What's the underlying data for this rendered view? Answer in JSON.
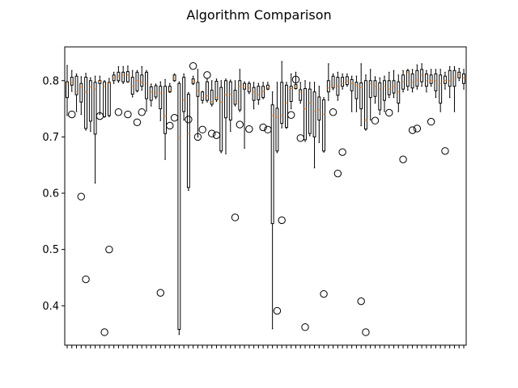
{
  "chart_data": {
    "type": "box",
    "title": "Algorithm Comparison",
    "xlabel": "",
    "ylabel": "",
    "ylim": [
      0.33,
      0.86
    ],
    "yticks": [
      0.4,
      0.5,
      0.6,
      0.7,
      0.8
    ],
    "ytick_labels": [
      "0.4",
      "0.5",
      "0.6",
      "0.7",
      "0.8"
    ],
    "grid": false,
    "legend": "none",
    "n_boxes": 86,
    "box_color": "#000000",
    "median_color": "#ff7f0e",
    "boxes": [
      {
        "whislo": 0.738,
        "q1": 0.77,
        "med": 0.794,
        "q3": 0.798,
        "whishi": 0.827,
        "fliers": []
      },
      {
        "whislo": 0.781,
        "q1": 0.792,
        "med": 0.797,
        "q3": 0.806,
        "whishi": 0.818,
        "fliers": [
          0.74
        ]
      },
      {
        "whislo": 0.745,
        "q1": 0.775,
        "med": 0.78,
        "q3": 0.808,
        "whishi": 0.812,
        "fliers": []
      },
      {
        "whislo": 0.74,
        "q1": 0.762,
        "med": 0.789,
        "q3": 0.795,
        "whishi": 0.807,
        "fliers": [
          0.594
        ]
      },
      {
        "whislo": 0.712,
        "q1": 0.715,
        "med": 0.78,
        "q3": 0.806,
        "whishi": 0.813,
        "fliers": [
          0.447
        ]
      },
      {
        "whislo": 0.71,
        "q1": 0.728,
        "med": 0.789,
        "q3": 0.8,
        "whishi": 0.805,
        "fliers": []
      },
      {
        "whislo": 0.618,
        "q1": 0.705,
        "med": 0.785,
        "q3": 0.797,
        "whishi": 0.808,
        "fliers": []
      },
      {
        "whislo": 0.74,
        "q1": 0.795,
        "med": 0.799,
        "q3": 0.8,
        "whishi": 0.808,
        "fliers": [
          0.737
        ]
      },
      {
        "whislo": 0.735,
        "q1": 0.736,
        "med": 0.79,
        "q3": 0.798,
        "whishi": 0.8,
        "fliers": [
          0.353
        ]
      },
      {
        "whislo": 0.736,
        "q1": 0.738,
        "med": 0.796,
        "q3": 0.797,
        "whishi": 0.804,
        "fliers": [
          0.5
        ]
      },
      {
        "whislo": 0.795,
        "q1": 0.8,
        "med": 0.805,
        "q3": 0.81,
        "whishi": 0.815,
        "fliers": []
      },
      {
        "whislo": 0.797,
        "q1": 0.8,
        "med": 0.808,
        "q3": 0.815,
        "whishi": 0.825,
        "fliers": [
          0.744
        ]
      },
      {
        "whislo": 0.795,
        "q1": 0.798,
        "med": 0.81,
        "q3": 0.815,
        "whishi": 0.825,
        "fliers": []
      },
      {
        "whislo": 0.797,
        "q1": 0.798,
        "med": 0.81,
        "q3": 0.816,
        "whishi": 0.826,
        "fliers": [
          0.74
        ]
      },
      {
        "whislo": 0.771,
        "q1": 0.776,
        "med": 0.79,
        "q3": 0.806,
        "whishi": 0.818,
        "fliers": []
      },
      {
        "whislo": 0.78,
        "q1": 0.782,
        "med": 0.8,
        "q3": 0.815,
        "whishi": 0.818,
        "fliers": [
          0.726
        ]
      },
      {
        "whislo": 0.783,
        "q1": 0.79,
        "med": 0.797,
        "q3": 0.81,
        "whishi": 0.825,
        "fliers": [
          0.744
        ]
      },
      {
        "whislo": 0.746,
        "q1": 0.768,
        "med": 0.795,
        "q3": 0.815,
        "whishi": 0.818,
        "fliers": []
      },
      {
        "whislo": 0.755,
        "q1": 0.765,
        "med": 0.78,
        "q3": 0.789,
        "whishi": 0.794,
        "fliers": []
      },
      {
        "whislo": 0.768,
        "q1": 0.771,
        "med": 0.778,
        "q3": 0.791,
        "whishi": 0.794,
        "fliers": []
      },
      {
        "whislo": 0.729,
        "q1": 0.75,
        "med": 0.778,
        "q3": 0.79,
        "whishi": 0.798,
        "fliers": [
          0.423
        ]
      },
      {
        "whislo": 0.66,
        "q1": 0.706,
        "med": 0.737,
        "q3": 0.79,
        "whishi": 0.802,
        "fliers": []
      },
      {
        "whislo": 0.779,
        "q1": 0.78,
        "med": 0.782,
        "q3": 0.79,
        "whishi": 0.795,
        "fliers": [
          0.72
        ]
      },
      {
        "whislo": 0.799,
        "q1": 0.8,
        "med": 0.805,
        "q3": 0.81,
        "whishi": 0.812,
        "fliers": [
          0.734
        ]
      },
      {
        "whislo": 0.349,
        "q1": 0.358,
        "med": 0.698,
        "q3": 0.795,
        "whishi": 0.798,
        "fliers": []
      },
      {
        "whislo": 0.73,
        "q1": 0.745,
        "med": 0.766,
        "q3": 0.806,
        "whishi": 0.812,
        "fliers": []
      },
      {
        "whislo": 0.605,
        "q1": 0.61,
        "med": 0.706,
        "q3": 0.776,
        "whishi": 0.779,
        "fliers": [
          0.731
        ]
      },
      {
        "whislo": 0.793,
        "q1": 0.795,
        "med": 0.799,
        "q3": 0.803,
        "whishi": 0.808,
        "fliers": [
          0.826
        ]
      },
      {
        "whislo": 0.7,
        "q1": 0.772,
        "med": 0.782,
        "q3": 0.797,
        "whishi": 0.82,
        "fliers": [
          0.7
        ]
      },
      {
        "whislo": 0.76,
        "q1": 0.765,
        "med": 0.77,
        "q3": 0.78,
        "whishi": 0.781,
        "fliers": [
          0.713
        ]
      },
      {
        "whislo": 0.762,
        "q1": 0.765,
        "med": 0.773,
        "q3": 0.798,
        "whishi": 0.803,
        "fliers": [
          0.81
        ]
      },
      {
        "whislo": 0.755,
        "q1": 0.758,
        "med": 0.763,
        "q3": 0.783,
        "whishi": 0.8,
        "fliers": [
          0.706
        ]
      },
      {
        "whislo": 0.763,
        "q1": 0.766,
        "med": 0.77,
        "q3": 0.799,
        "whishi": 0.803,
        "fliers": [
          0.703
        ]
      },
      {
        "whislo": 0.672,
        "q1": 0.675,
        "med": 0.762,
        "q3": 0.788,
        "whishi": 0.8,
        "fliers": []
      },
      {
        "whislo": 0.67,
        "q1": 0.734,
        "med": 0.775,
        "q3": 0.8,
        "whishi": 0.803,
        "fliers": []
      },
      {
        "whislo": 0.71,
        "q1": 0.73,
        "med": 0.776,
        "q3": 0.798,
        "whishi": 0.801,
        "fliers": []
      },
      {
        "whislo": 0.755,
        "q1": 0.758,
        "med": 0.763,
        "q3": 0.783,
        "whishi": 0.8,
        "fliers": [
          0.557
        ]
      },
      {
        "whislo": 0.745,
        "q1": 0.748,
        "med": 0.79,
        "q3": 0.8,
        "whishi": 0.82,
        "fliers": [
          0.722
        ]
      },
      {
        "whislo": 0.68,
        "q1": 0.785,
        "med": 0.79,
        "q3": 0.795,
        "whishi": 0.798,
        "fliers": []
      },
      {
        "whislo": 0.777,
        "q1": 0.78,
        "med": 0.787,
        "q3": 0.795,
        "whishi": 0.798,
        "fliers": [
          0.714
        ]
      },
      {
        "whislo": 0.75,
        "q1": 0.765,
        "med": 0.78,
        "q3": 0.788,
        "whishi": 0.797,
        "fliers": []
      },
      {
        "whislo": 0.758,
        "q1": 0.766,
        "med": 0.775,
        "q3": 0.79,
        "whishi": 0.795,
        "fliers": []
      },
      {
        "whislo": 0.768,
        "q1": 0.77,
        "med": 0.781,
        "q3": 0.79,
        "whishi": 0.797,
        "fliers": [
          0.717
        ]
      },
      {
        "whislo": 0.784,
        "q1": 0.785,
        "med": 0.787,
        "q3": 0.792,
        "whishi": 0.797,
        "fliers": [
          0.713
        ]
      },
      {
        "whislo": 0.359,
        "q1": 0.546,
        "med": 0.738,
        "q3": 0.757,
        "whishi": 0.78,
        "fliers": []
      },
      {
        "whislo": 0.672,
        "q1": 0.675,
        "med": 0.735,
        "q3": 0.751,
        "whishi": 0.797,
        "fliers": [
          0.391
        ]
      },
      {
        "whislo": 0.716,
        "q1": 0.724,
        "med": 0.738,
        "q3": 0.797,
        "whishi": 0.834,
        "fliers": [
          0.552
        ]
      },
      {
        "whislo": 0.715,
        "q1": 0.717,
        "med": 0.76,
        "q3": 0.792,
        "whishi": 0.797,
        "fliers": []
      },
      {
        "whislo": 0.75,
        "q1": 0.763,
        "med": 0.786,
        "q3": 0.79,
        "whishi": 0.812,
        "fliers": [
          0.739
        ]
      },
      {
        "whislo": 0.785,
        "q1": 0.786,
        "med": 0.789,
        "q3": 0.793,
        "whishi": 0.815,
        "fliers": [
          0.802
        ]
      },
      {
        "whislo": 0.76,
        "q1": 0.765,
        "med": 0.78,
        "q3": 0.784,
        "whishi": 0.797,
        "fliers": [
          0.698
        ]
      },
      {
        "whislo": 0.692,
        "q1": 0.695,
        "med": 0.75,
        "q3": 0.786,
        "whishi": 0.8,
        "fliers": [
          0.362
        ]
      },
      {
        "whislo": 0.702,
        "q1": 0.706,
        "med": 0.76,
        "q3": 0.785,
        "whishi": 0.797,
        "fliers": []
      },
      {
        "whislo": 0.645,
        "q1": 0.7,
        "med": 0.745,
        "q3": 0.78,
        "whishi": 0.797,
        "fliers": []
      },
      {
        "whislo": 0.69,
        "q1": 0.73,
        "med": 0.748,
        "q3": 0.771,
        "whishi": 0.79,
        "fliers": []
      },
      {
        "whislo": 0.673,
        "q1": 0.675,
        "med": 0.74,
        "q3": 0.766,
        "whishi": 0.77,
        "fliers": [
          0.421
        ]
      },
      {
        "whislo": 0.765,
        "q1": 0.78,
        "med": 0.787,
        "q3": 0.8,
        "whishi": 0.83,
        "fliers": []
      },
      {
        "whislo": 0.784,
        "q1": 0.787,
        "med": 0.791,
        "q3": 0.808,
        "whishi": 0.812,
        "fliers": [
          0.744
        ]
      },
      {
        "whislo": 0.765,
        "q1": 0.774,
        "med": 0.79,
        "q3": 0.806,
        "whishi": 0.815,
        "fliers": [
          0.635
        ]
      },
      {
        "whislo": 0.785,
        "q1": 0.79,
        "med": 0.795,
        "q3": 0.806,
        "whishi": 0.812,
        "fliers": [
          0.673
        ]
      },
      {
        "whislo": 0.79,
        "q1": 0.793,
        "med": 0.799,
        "q3": 0.807,
        "whishi": 0.812,
        "fliers": []
      },
      {
        "whislo": 0.745,
        "q1": 0.782,
        "med": 0.795,
        "q3": 0.802,
        "whishi": 0.808,
        "fliers": []
      },
      {
        "whislo": 0.745,
        "q1": 0.768,
        "med": 0.792,
        "q3": 0.797,
        "whishi": 0.808,
        "fliers": []
      },
      {
        "whislo": 0.72,
        "q1": 0.75,
        "med": 0.788,
        "q3": 0.796,
        "whishi": 0.83,
        "fliers": [
          0.408
        ]
      },
      {
        "whislo": 0.712,
        "q1": 0.714,
        "med": 0.73,
        "q3": 0.8,
        "whishi": 0.81,
        "fliers": [
          0.353
        ]
      },
      {
        "whislo": 0.73,
        "q1": 0.77,
        "med": 0.795,
        "q3": 0.8,
        "whishi": 0.82,
        "fliers": []
      },
      {
        "whislo": 0.76,
        "q1": 0.772,
        "med": 0.79,
        "q3": 0.8,
        "whishi": 0.807,
        "fliers": [
          0.729
        ]
      },
      {
        "whislo": 0.74,
        "q1": 0.748,
        "med": 0.785,
        "q3": 0.796,
        "whishi": 0.805,
        "fliers": []
      },
      {
        "whislo": 0.745,
        "q1": 0.765,
        "med": 0.79,
        "q3": 0.8,
        "whishi": 0.808,
        "fliers": []
      },
      {
        "whislo": 0.77,
        "q1": 0.775,
        "med": 0.785,
        "q3": 0.8,
        "whishi": 0.815,
        "fliers": [
          0.743
        ]
      },
      {
        "whislo": 0.77,
        "q1": 0.778,
        "med": 0.79,
        "q3": 0.8,
        "whishi": 0.818,
        "fliers": []
      },
      {
        "whislo": 0.745,
        "q1": 0.76,
        "med": 0.78,
        "q3": 0.798,
        "whishi": 0.81,
        "fliers": []
      },
      {
        "whislo": 0.78,
        "q1": 0.785,
        "med": 0.798,
        "q3": 0.81,
        "whishi": 0.818,
        "fliers": [
          0.66
        ]
      },
      {
        "whislo": 0.783,
        "q1": 0.79,
        "med": 0.815,
        "q3": 0.818,
        "whishi": 0.82,
        "fliers": []
      },
      {
        "whislo": 0.78,
        "q1": 0.787,
        "med": 0.797,
        "q3": 0.812,
        "whishi": 0.82,
        "fliers": [
          0.712
        ]
      },
      {
        "whislo": 0.785,
        "q1": 0.79,
        "med": 0.801,
        "q3": 0.818,
        "whishi": 0.828,
        "fliers": [
          0.715
        ]
      },
      {
        "whislo": 0.79,
        "q1": 0.798,
        "med": 0.81,
        "q3": 0.82,
        "whishi": 0.83,
        "fliers": []
      },
      {
        "whislo": 0.78,
        "q1": 0.79,
        "med": 0.8,
        "q3": 0.812,
        "whishi": 0.818,
        "fliers": []
      },
      {
        "whislo": 0.79,
        "q1": 0.795,
        "med": 0.8,
        "q3": 0.81,
        "whishi": 0.82,
        "fliers": [
          0.727
        ]
      },
      {
        "whislo": 0.77,
        "q1": 0.782,
        "med": 0.8,
        "q3": 0.812,
        "whishi": 0.82,
        "fliers": []
      },
      {
        "whislo": 0.745,
        "q1": 0.76,
        "med": 0.795,
        "q3": 0.81,
        "whishi": 0.82,
        "fliers": []
      },
      {
        "whislo": 0.785,
        "q1": 0.795,
        "med": 0.8,
        "q3": 0.808,
        "whishi": 0.815,
        "fliers": [
          0.675
        ]
      },
      {
        "whislo": 0.77,
        "q1": 0.79,
        "med": 0.8,
        "q3": 0.818,
        "whishi": 0.825,
        "fliers": []
      },
      {
        "whislo": 0.745,
        "q1": 0.79,
        "med": 0.805,
        "q3": 0.818,
        "whishi": 0.825,
        "fliers": []
      },
      {
        "whislo": 0.8,
        "q1": 0.805,
        "med": 0.81,
        "q3": 0.815,
        "whishi": 0.822,
        "fliers": []
      },
      {
        "whislo": 0.785,
        "q1": 0.795,
        "med": 0.805,
        "q3": 0.812,
        "whishi": 0.82,
        "fliers": []
      }
    ]
  }
}
